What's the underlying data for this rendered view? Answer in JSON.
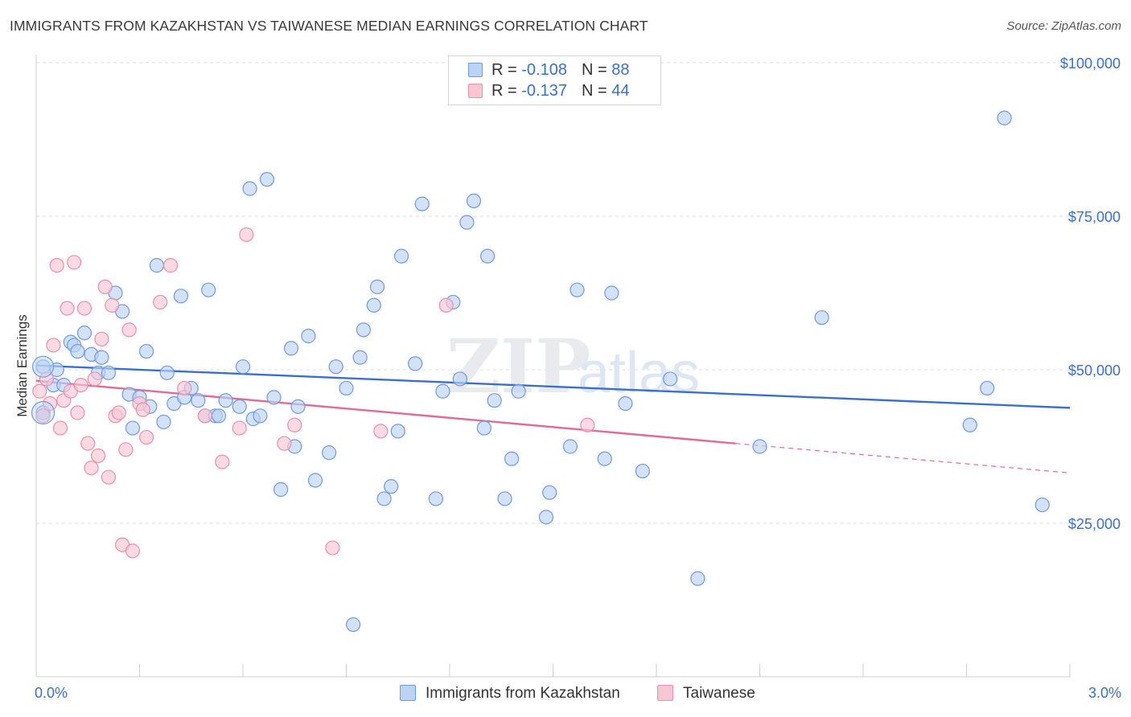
{
  "title": "IMMIGRANTS FROM KAZAKHSTAN VS TAIWANESE MEDIAN EARNINGS CORRELATION CHART",
  "source": "Source: ZipAtlas.com",
  "watermark": "ZIPatlas",
  "legend": {
    "r_label": "R =",
    "n_label": "N =",
    "rows": [
      {
        "name": "Immigrants from Kazakhstan",
        "r": "-0.108",
        "n": "88",
        "fill": "#bcd3f5",
        "stroke": "#6d9be0"
      },
      {
        "name": "Taiwanese",
        "r": "-0.137",
        "n": "44",
        "fill": "#f9c6d4",
        "stroke": "#ec8fab"
      }
    ]
  },
  "chart_data": {
    "type": "scatter",
    "title": "IMMIGRANTS FROM KAZAKHSTAN VS TAIWANESE MEDIAN EARNINGS CORRELATION CHART",
    "xlabel": "",
    "ylabel": "Median Earnings",
    "xlim": [
      0,
      3.0
    ],
    "ylim": [
      0,
      105000
    ],
    "x_tick_labels": [
      "0.0%",
      "3.0%"
    ],
    "y_ticks": [
      25000,
      50000,
      75000,
      100000
    ],
    "y_tick_labels": [
      "$25,000",
      "$50,000",
      "$75,000",
      "$100,000"
    ],
    "grid": "horizontal dashed",
    "legend_position": "top-center",
    "colors": {
      "blue": "#3a6fcf",
      "pink": "#e06b93"
    },
    "series": [
      {
        "name": "Immigrants from Kazakhstan",
        "color": "#6d9be0",
        "fill": "#bcd3f5",
        "trend": {
          "x": [
            0.0,
            3.0
          ],
          "y": [
            50700,
            43800
          ],
          "style": "solid"
        },
        "points": [
          [
            0.02,
            50500
          ],
          [
            0.05,
            47500
          ],
          [
            0.06,
            50000
          ],
          [
            0.1,
            54500
          ],
          [
            0.11,
            54000
          ],
          [
            0.12,
            53000
          ],
          [
            0.14,
            56000
          ],
          [
            0.16,
            52500
          ],
          [
            0.18,
            49500
          ],
          [
            0.19,
            52000
          ],
          [
            0.21,
            49500
          ],
          [
            0.23,
            62500
          ],
          [
            0.25,
            59500
          ],
          [
            0.27,
            46000
          ],
          [
            0.28,
            40500
          ],
          [
            0.3,
            45500
          ],
          [
            0.32,
            53000
          ],
          [
            0.33,
            44000
          ],
          [
            0.35,
            67000
          ],
          [
            0.37,
            41500
          ],
          [
            0.38,
            49500
          ],
          [
            0.4,
            44500
          ],
          [
            0.42,
            62000
          ],
          [
            0.43,
            45500
          ],
          [
            0.45,
            47000
          ],
          [
            0.47,
            45000
          ],
          [
            0.49,
            42500
          ],
          [
            0.5,
            63000
          ],
          [
            0.52,
            42500
          ],
          [
            0.53,
            42500
          ],
          [
            0.55,
            45000
          ],
          [
            0.59,
            44000
          ],
          [
            0.6,
            50500
          ],
          [
            0.62,
            79500
          ],
          [
            0.63,
            42000
          ],
          [
            0.65,
            42500
          ],
          [
            0.67,
            81000
          ],
          [
            0.69,
            45500
          ],
          [
            0.71,
            30500
          ],
          [
            0.74,
            53500
          ],
          [
            0.75,
            37500
          ],
          [
            0.76,
            44000
          ],
          [
            0.79,
            55500
          ],
          [
            0.81,
            32000
          ],
          [
            0.85,
            36500
          ],
          [
            0.87,
            50500
          ],
          [
            0.9,
            47000
          ],
          [
            0.92,
            8500
          ],
          [
            0.94,
            52000
          ],
          [
            0.95,
            56500
          ],
          [
            0.98,
            60500
          ],
          [
            0.99,
            63500
          ],
          [
            1.01,
            29000
          ],
          [
            1.03,
            31000
          ],
          [
            1.05,
            40000
          ],
          [
            1.06,
            68500
          ],
          [
            1.1,
            51000
          ],
          [
            1.12,
            77000
          ],
          [
            1.16,
            29000
          ],
          [
            1.18,
            46500
          ],
          [
            1.21,
            61000
          ],
          [
            1.23,
            48500
          ],
          [
            1.25,
            74000
          ],
          [
            1.27,
            77500
          ],
          [
            1.3,
            40500
          ],
          [
            1.31,
            68500
          ],
          [
            1.33,
            45000
          ],
          [
            1.36,
            29000
          ],
          [
            1.38,
            35500
          ],
          [
            1.4,
            46500
          ],
          [
            1.48,
            26000
          ],
          [
            1.49,
            30000
          ],
          [
            1.55,
            37500
          ],
          [
            1.57,
            63000
          ],
          [
            1.65,
            35500
          ],
          [
            1.67,
            62500
          ],
          [
            1.71,
            44500
          ],
          [
            1.76,
            33500
          ],
          [
            1.84,
            48500
          ],
          [
            1.92,
            16000
          ],
          [
            2.1,
            37500
          ],
          [
            2.28,
            58500
          ],
          [
            2.71,
            41000
          ],
          [
            2.76,
            47000
          ],
          [
            2.81,
            91000
          ],
          [
            2.92,
            28000
          ],
          [
            0.02,
            43000
          ],
          [
            0.08,
            47500
          ]
        ]
      },
      {
        "name": "Taiwanese",
        "color": "#ec8fab",
        "fill": "#f9c6d4",
        "trend": {
          "x": [
            0.0,
            2.03
          ],
          "y": [
            48200,
            38000
          ],
          "style": "solid",
          "dashed_to": [
            3.0,
            33200
          ]
        },
        "points": [
          [
            0.01,
            46500
          ],
          [
            0.02,
            42500
          ],
          [
            0.03,
            48500
          ],
          [
            0.04,
            44500
          ],
          [
            0.05,
            54000
          ],
          [
            0.06,
            67000
          ],
          [
            0.07,
            40500
          ],
          [
            0.08,
            45000
          ],
          [
            0.09,
            60000
          ],
          [
            0.1,
            46500
          ],
          [
            0.11,
            67500
          ],
          [
            0.12,
            43000
          ],
          [
            0.13,
            47500
          ],
          [
            0.14,
            60000
          ],
          [
            0.15,
            38000
          ],
          [
            0.16,
            34000
          ],
          [
            0.17,
            48500
          ],
          [
            0.18,
            36000
          ],
          [
            0.19,
            55000
          ],
          [
            0.2,
            63500
          ],
          [
            0.21,
            32500
          ],
          [
            0.22,
            60500
          ],
          [
            0.23,
            42500
          ],
          [
            0.24,
            43000
          ],
          [
            0.25,
            21500
          ],
          [
            0.26,
            37000
          ],
          [
            0.27,
            56500
          ],
          [
            0.28,
            20500
          ],
          [
            0.3,
            44500
          ],
          [
            0.31,
            43500
          ],
          [
            0.32,
            39000
          ],
          [
            0.36,
            61000
          ],
          [
            0.39,
            67000
          ],
          [
            0.43,
            47000
          ],
          [
            0.49,
            42500
          ],
          [
            0.54,
            35000
          ],
          [
            0.59,
            40500
          ],
          [
            0.61,
            72000
          ],
          [
            0.72,
            38000
          ],
          [
            0.75,
            41000
          ],
          [
            0.86,
            21000
          ],
          [
            1.0,
            40000
          ],
          [
            1.19,
            60500
          ],
          [
            1.6,
            41000
          ]
        ]
      }
    ]
  }
}
